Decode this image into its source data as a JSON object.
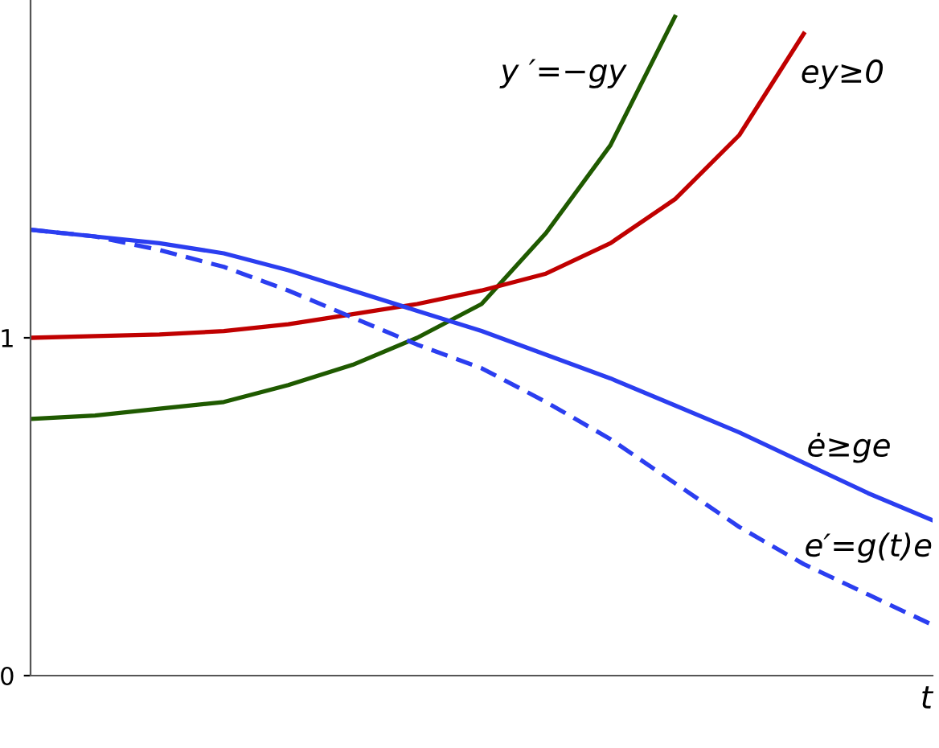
{
  "chart_data": {
    "type": "line",
    "xlabel": "t",
    "categories": [
      null,
      null,
      null,
      null,
      null,
      null,
      null,
      null,
      null,
      null,
      null,
      null,
      null,
      null,
      null
    ],
    "series": [
      {
        "name": "y ′=−gy",
        "color": "#1f5a00",
        "line_style": "solid",
        "values": [
          0.76,
          0.77,
          0.79,
          0.81,
          0.86,
          0.92,
          1.0,
          1.1,
          1.31,
          1.57,
          1.95,
          null,
          null,
          null,
          null
        ]
      },
      {
        "name": "ey≥0",
        "color": "#c00000",
        "line_style": "solid",
        "values": [
          1.0,
          1.005,
          1.01,
          1.02,
          1.04,
          1.07,
          1.1,
          1.14,
          1.19,
          1.28,
          1.41,
          1.6,
          1.9,
          null,
          null
        ]
      },
      {
        "name": "ė≥ge",
        "color": "#2b3ef0",
        "line_style": "solid",
        "values": [
          1.32,
          1.3,
          1.28,
          1.25,
          1.2,
          1.14,
          1.08,
          1.02,
          0.95,
          0.88,
          0.8,
          0.72,
          0.63,
          0.54,
          0.46
        ]
      },
      {
        "name": "e′=g(t)e",
        "color": "#2b3ef0",
        "line_style": "dashed",
        "values": [
          1.32,
          1.3,
          1.26,
          1.21,
          1.14,
          1.06,
          0.98,
          0.91,
          0.81,
          0.7,
          0.57,
          0.44,
          0.33,
          0.24,
          0.15
        ]
      }
    ],
    "ylim": [
      0,
      2
    ],
    "yticks": [
      0,
      1
    ],
    "tick_labels": "y",
    "grid": false,
    "legend": false,
    "marker": "none"
  }
}
